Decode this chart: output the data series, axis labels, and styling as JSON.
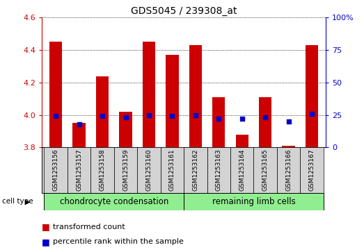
{
  "title": "GDS5045 / 239308_at",
  "samples": [
    "GSM1253156",
    "GSM1253157",
    "GSM1253158",
    "GSM1253159",
    "GSM1253160",
    "GSM1253161",
    "GSM1253162",
    "GSM1253163",
    "GSM1253164",
    "GSM1253165",
    "GSM1253166",
    "GSM1253167"
  ],
  "red_values": [
    4.45,
    3.95,
    4.24,
    4.02,
    4.45,
    4.37,
    4.43,
    4.11,
    3.88,
    4.11,
    3.81,
    4.43
  ],
  "blue_values": [
    24,
    18,
    24,
    23,
    25,
    24,
    25,
    22,
    22,
    23,
    20,
    26
  ],
  "ylim_left": [
    3.8,
    4.6
  ],
  "ylim_right": [
    0,
    100
  ],
  "yticks_left": [
    3.8,
    4.0,
    4.2,
    4.4,
    4.6
  ],
  "yticks_right": [
    0,
    25,
    50,
    75,
    100
  ],
  "group1_label": "chondrocyte condensation",
  "group2_label": "remaining limb cells",
  "group_color": "#90ee90",
  "cell_type_label": "cell type",
  "legend_red": "transformed count",
  "legend_blue": "percentile rank within the sample",
  "bar_color": "#cc0000",
  "dot_color": "#0000cc",
  "sample_bg_color": "#d3d3d3",
  "plot_bg": "#ffffff",
  "left_axis_color": "#cc0000",
  "right_axis_color": "#0000cc",
  "bar_width": 0.55,
  "base_value": 3.8,
  "dot_size": 18
}
